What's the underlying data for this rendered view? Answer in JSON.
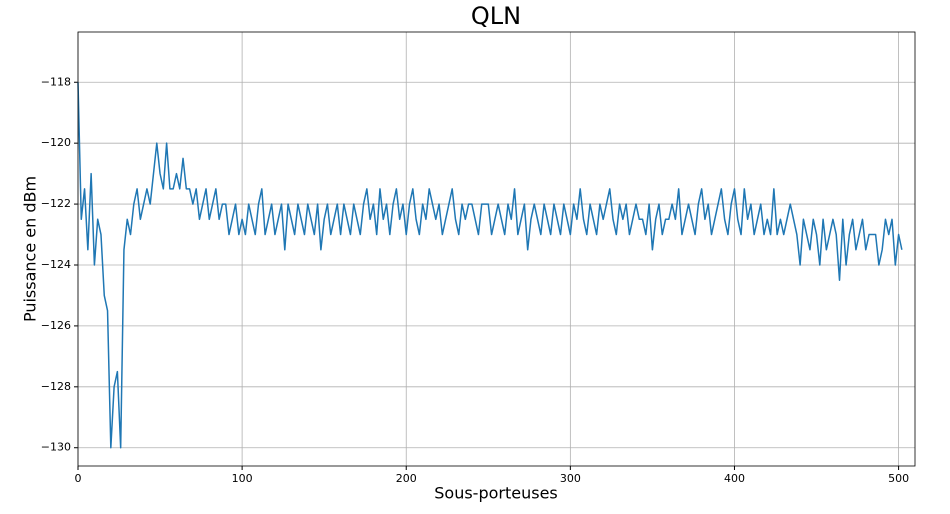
{
  "chart_data": {
    "type": "line",
    "title": "QLN",
    "x_label": "Sous-porteuses",
    "y_label": "Puissance en dBm",
    "color": "#1f77b4",
    "grid": true,
    "xlim": [
      0,
      510
    ],
    "ylim": [
      -130.6,
      -116.35
    ],
    "xticks": [
      0,
      100,
      200,
      300,
      400,
      500
    ],
    "yticks": [
      {
        "value": -130,
        "label": "−130"
      },
      {
        "value": -128,
        "label": "−128"
      },
      {
        "value": -126,
        "label": "−126"
      },
      {
        "value": -124,
        "label": "−124"
      },
      {
        "value": -122,
        "label": "−122"
      },
      {
        "value": -120,
        "label": "−120"
      },
      {
        "value": -118,
        "label": "−118"
      }
    ],
    "x": [
      0,
      2,
      4,
      6,
      8,
      10,
      12,
      14,
      16,
      18,
      20,
      22,
      24,
      26,
      28,
      30,
      32,
      34,
      36,
      38,
      40,
      42,
      44,
      46,
      48,
      50,
      52,
      54,
      56,
      58,
      60,
      62,
      64,
      66,
      68,
      70,
      72,
      74,
      76,
      78,
      80,
      82,
      84,
      86,
      88,
      90,
      92,
      94,
      96,
      98,
      100,
      102,
      104,
      106,
      108,
      110,
      112,
      114,
      116,
      118,
      120,
      122,
      124,
      126,
      128,
      130,
      132,
      134,
      136,
      138,
      140,
      142,
      144,
      146,
      148,
      150,
      152,
      154,
      156,
      158,
      160,
      162,
      164,
      166,
      168,
      170,
      172,
      174,
      176,
      178,
      180,
      182,
      184,
      186,
      188,
      190,
      192,
      194,
      196,
      198,
      200,
      202,
      204,
      206,
      208,
      210,
      212,
      214,
      216,
      218,
      220,
      222,
      224,
      226,
      228,
      230,
      232,
      234,
      236,
      238,
      240,
      242,
      244,
      246,
      248,
      250,
      252,
      254,
      256,
      258,
      260,
      262,
      264,
      266,
      268,
      270,
      272,
      274,
      276,
      278,
      280,
      282,
      284,
      286,
      288,
      290,
      292,
      294,
      296,
      298,
      300,
      302,
      304,
      306,
      308,
      310,
      312,
      314,
      316,
      318,
      320,
      322,
      324,
      326,
      328,
      330,
      332,
      334,
      336,
      338,
      340,
      342,
      344,
      346,
      348,
      350,
      352,
      354,
      356,
      358,
      360,
      362,
      364,
      366,
      368,
      370,
      372,
      374,
      376,
      378,
      380,
      382,
      384,
      386,
      388,
      390,
      392,
      394,
      396,
      398,
      400,
      402,
      404,
      406,
      408,
      410,
      412,
      414,
      416,
      418,
      420,
      422,
      424,
      426,
      428,
      430,
      432,
      434,
      436,
      438,
      440,
      442,
      444,
      446,
      448,
      450,
      452,
      454,
      456,
      458,
      460,
      462,
      464,
      466,
      468,
      470,
      472,
      474,
      476,
      478,
      480,
      482,
      484,
      486,
      488,
      490,
      492,
      494,
      496,
      498,
      500,
      502
    ],
    "values": [
      -118,
      -122.5,
      -121.5,
      -123.5,
      -121,
      -124,
      -122.5,
      -123,
      -125,
      -125.5,
      -130,
      -128,
      -127.5,
      -130,
      -123.5,
      -122.5,
      -123,
      -122,
      -121.5,
      -122.5,
      -122,
      -121.5,
      -122,
      -121,
      -120,
      -121,
      -121.5,
      -120,
      -121.5,
      -121.5,
      -121,
      -121.5,
      -120.5,
      -121.5,
      -121.5,
      -122,
      -121.5,
      -122.5,
      -122,
      -121.5,
      -122.5,
      -122,
      -121.5,
      -122.5,
      -122,
      -122,
      -123,
      -122.5,
      -122,
      -123,
      -122.5,
      -123,
      -122,
      -122.5,
      -123,
      -122,
      -121.5,
      -123,
      -122.5,
      -122,
      -123,
      -122.5,
      -122,
      -123.5,
      -122,
      -122.5,
      -123,
      -122,
      -122.5,
      -123,
      -122,
      -122.5,
      -123,
      -122,
      -123.5,
      -122.5,
      -122,
      -123,
      -122.5,
      -122,
      -123,
      -122,
      -122.5,
      -123,
      -122,
      -122.5,
      -123,
      -122,
      -121.5,
      -122.5,
      -122,
      -123,
      -121.5,
      -122.5,
      -122,
      -123,
      -122,
      -121.5,
      -122.5,
      -122,
      -123,
      -122,
      -121.5,
      -122.5,
      -123,
      -122,
      -122.5,
      -121.5,
      -122,
      -122.5,
      -122,
      -123,
      -122.5,
      -122,
      -121.5,
      -122.5,
      -123,
      -122,
      -122.5,
      -122,
      -122,
      -122.5,
      -123,
      -122,
      -122,
      -122,
      -123,
      -122.5,
      -122,
      -122.5,
      -123,
      -122,
      -122.5,
      -121.5,
      -123,
      -122.5,
      -122,
      -123.5,
      -122.5,
      -122,
      -122.5,
      -123,
      -122,
      -122.5,
      -123,
      -122,
      -122.5,
      -123,
      -122,
      -122.5,
      -123,
      -122,
      -122.5,
      -121.5,
      -122.5,
      -123,
      -122,
      -122.5,
      -123,
      -122,
      -122.5,
      -122,
      -121.5,
      -122.5,
      -123,
      -122,
      -122.5,
      -122,
      -123,
      -122.5,
      -122,
      -122.5,
      -122.5,
      -123,
      -122,
      -123.5,
      -122.5,
      -122,
      -123,
      -122.5,
      -122.5,
      -122,
      -122.5,
      -121.5,
      -123,
      -122.5,
      -122,
      -122.5,
      -123,
      -122,
      -121.5,
      -122.5,
      -122,
      -123,
      -122.5,
      -122,
      -121.5,
      -122.5,
      -123,
      -122,
      -121.5,
      -122.5,
      -123,
      -121.5,
      -122.5,
      -122,
      -123,
      -122.5,
      -122,
      -123,
      -122.5,
      -123,
      -121.5,
      -123,
      -122.5,
      -123,
      -122.5,
      -122,
      -122.5,
      -123,
      -124,
      -122.5,
      -123,
      -123.5,
      -122.5,
      -123,
      -124,
      -122.5,
      -123.5,
      -123,
      -122.5,
      -123,
      -124.5,
      -122.5,
      -124,
      -123,
      -122.5,
      -123.5,
      -123,
      -122.5,
      -123.5,
      -123,
      -123,
      -123,
      -124,
      -123.5,
      -122.5,
      -123,
      -122.5,
      -124,
      -123,
      -123.5
    ]
  }
}
